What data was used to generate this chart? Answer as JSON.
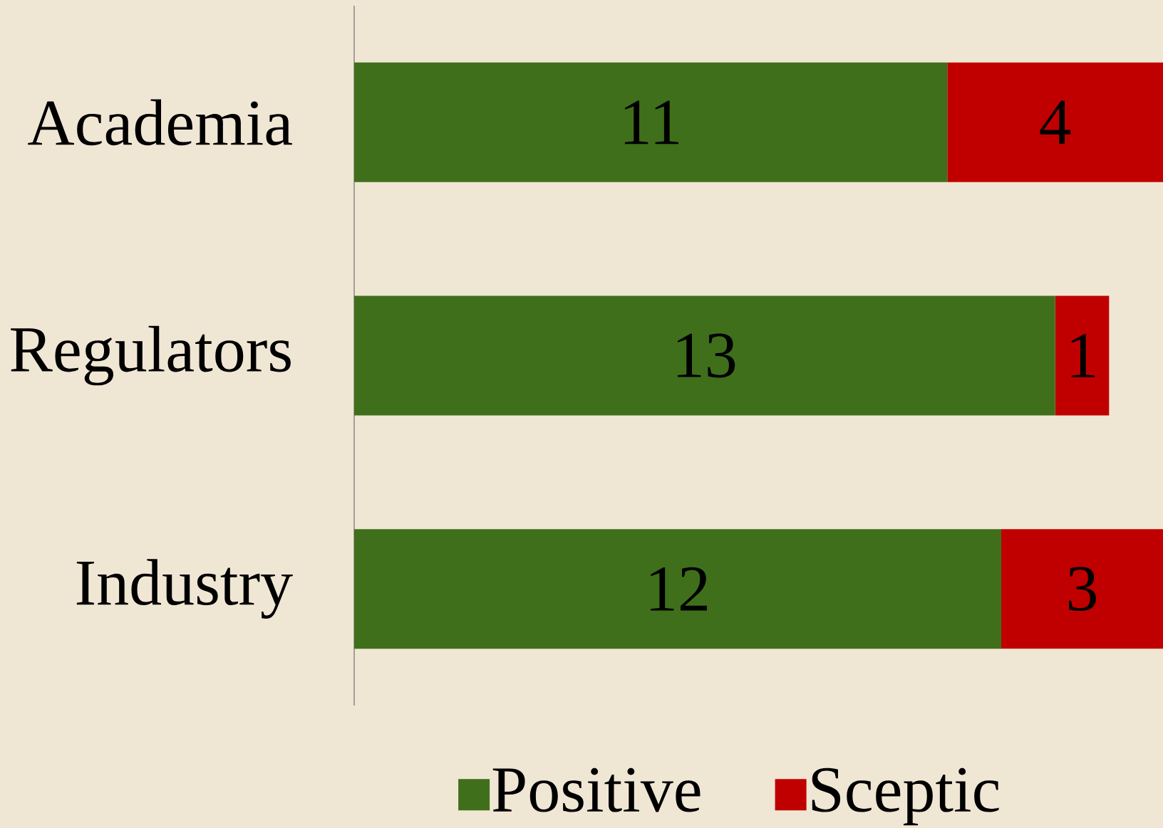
{
  "chart_data": {
    "type": "bar",
    "orientation": "horizontal",
    "stacked": true,
    "categories": [
      "Academia",
      "Regulators",
      "Industry"
    ],
    "series": [
      {
        "name": "Positive",
        "color": "#3f6f1a",
        "values": [
          11,
          13,
          12
        ],
        "value_labels": [
          "11",
          "13",
          "12"
        ]
      },
      {
        "name": "Sceptic",
        "color": "#c00000",
        "values": [
          4,
          1,
          3
        ],
        "value_labels": [
          "4",
          "1",
          "3"
        ]
      }
    ],
    "tick_labels": "y",
    "legend": "bottom"
  }
}
